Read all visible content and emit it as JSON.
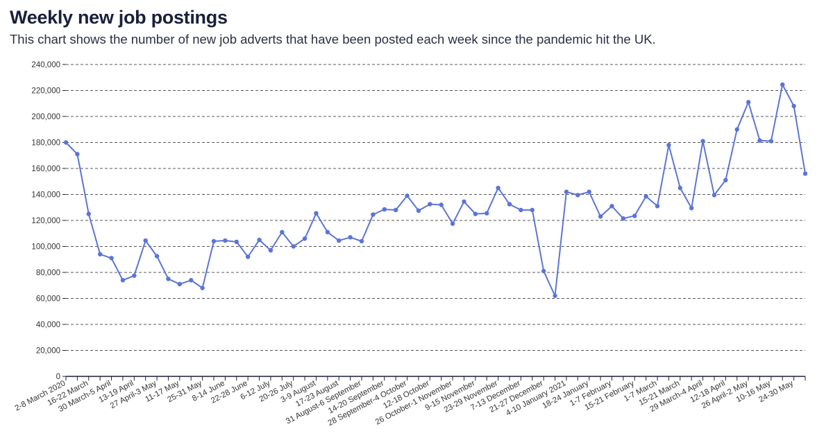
{
  "header": {
    "title": "Weekly new job postings",
    "subtitle": "This chart shows the number of new job adverts that have been posted each week since the pandemic hit the UK."
  },
  "colors": {
    "line": "#5b74d6",
    "grid": "#555555",
    "axis": "#1a1f3a"
  },
  "chart_data": {
    "type": "line",
    "title": "Weekly new job postings",
    "subtitle": "This chart shows the number of new job adverts that have been posted each week since the pandemic hit the UK.",
    "xlabel": "",
    "ylabel": "",
    "ylim": [
      0,
      240000
    ],
    "yticks": [
      0,
      20000,
      40000,
      60000,
      80000,
      100000,
      120000,
      140000,
      160000,
      180000,
      200000,
      220000,
      240000
    ],
    "ytick_labels": [
      "0",
      "20,000",
      "40,000",
      "60,000",
      "80,000",
      "100,000",
      "120,000",
      "140,000",
      "160,000",
      "180,000",
      "200,000",
      "220,000",
      "240,000"
    ],
    "grid": true,
    "grid_style": "dashed",
    "legend": "none",
    "x_labels": [
      {
        "index": 0,
        "label": "2-8 March 2020"
      },
      {
        "index": 2,
        "label": "16-22 March"
      },
      {
        "index": 4,
        "label": "30 March-5 April"
      },
      {
        "index": 6,
        "label": "13-19 April"
      },
      {
        "index": 8,
        "label": "27 April-3 May"
      },
      {
        "index": 10,
        "label": "11-17 May"
      },
      {
        "index": 12,
        "label": "25-31 May"
      },
      {
        "index": 14,
        "label": "8-14 June"
      },
      {
        "index": 16,
        "label": "22-28 June"
      },
      {
        "index": 18,
        "label": "6-12 July"
      },
      {
        "index": 20,
        "label": "20-26 July"
      },
      {
        "index": 22,
        "label": "3-9 August"
      },
      {
        "index": 24,
        "label": "17-23 August"
      },
      {
        "index": 26,
        "label": "31 August-6 September"
      },
      {
        "index": 28,
        "label": "14-20 September"
      },
      {
        "index": 30,
        "label": "28 September-4 October"
      },
      {
        "index": 32,
        "label": "12-18 October"
      },
      {
        "index": 34,
        "label": "26 October-1 November"
      },
      {
        "index": 36,
        "label": "9-15 November"
      },
      {
        "index": 38,
        "label": "23-29 November"
      },
      {
        "index": 40,
        "label": "7-13 December"
      },
      {
        "index": 42,
        "label": "21-27 December"
      },
      {
        "index": 44,
        "label": "4-10 January 2021"
      },
      {
        "index": 46,
        "label": "18-24 January"
      },
      {
        "index": 48,
        "label": "1-7 February"
      },
      {
        "index": 50,
        "label": "15-21 February"
      },
      {
        "index": 52,
        "label": "1-7 March"
      },
      {
        "index": 54,
        "label": "15-21 March"
      },
      {
        "index": 56,
        "label": "29 March-4 April"
      },
      {
        "index": 58,
        "label": "12-18 April"
      },
      {
        "index": 60,
        "label": "26 April-2 May"
      },
      {
        "index": 62,
        "label": "10-16 May"
      },
      {
        "index": 64,
        "label": "24-30 May"
      }
    ],
    "series": [
      {
        "values": [
          180000,
          171000,
          125000,
          94000,
          91000,
          74000,
          77500,
          104500,
          92500,
          75000,
          71000,
          74000,
          68000,
          104000,
          104500,
          103500,
          92000,
          105000,
          97000,
          111000,
          100000,
          106000,
          125500,
          111000,
          104500,
          107000,
          104000,
          124500,
          128500,
          128000,
          139000,
          127500,
          132500,
          132000,
          117500,
          134500,
          125000,
          125500,
          145000,
          132500,
          128000,
          128000,
          81000,
          62000,
          142000,
          139500,
          142000,
          123000,
          131000,
          121500,
          123500,
          138500,
          131000,
          178000,
          145000,
          129500,
          181000,
          139500,
          151000,
          190000,
          211000,
          181500,
          181000,
          224500,
          208000,
          156000
        ]
      }
    ]
  }
}
